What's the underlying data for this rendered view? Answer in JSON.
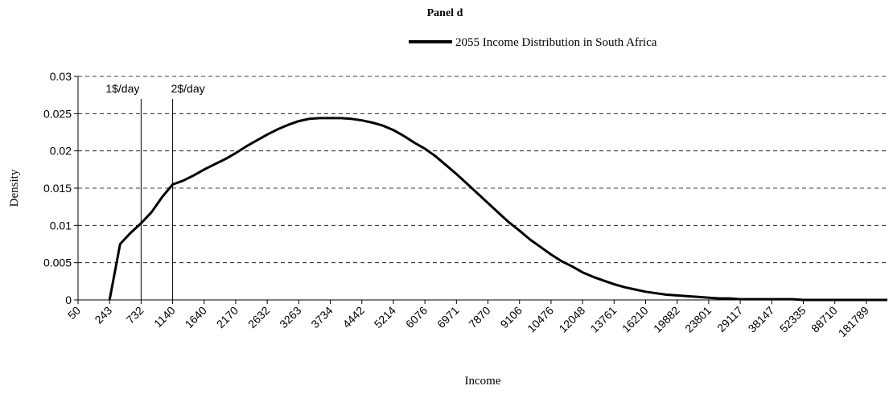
{
  "chart_data": {
    "type": "line",
    "title": "Panel d",
    "xlabel": "Income",
    "ylabel": "Density",
    "categories": [
      50,
      null,
      null,
      243,
      null,
      null,
      732,
      null,
      null,
      1140,
      null,
      null,
      1640,
      null,
      null,
      2170,
      null,
      null,
      2632,
      null,
      null,
      3263,
      null,
      null,
      3734,
      null,
      null,
      4442,
      null,
      null,
      5214,
      null,
      null,
      6076,
      null,
      null,
      6971,
      null,
      null,
      7870,
      null,
      null,
      9106,
      null,
      null,
      10476,
      null,
      null,
      12048,
      null,
      null,
      13761,
      null,
      null,
      16210,
      null,
      null,
      19882,
      null,
      null,
      23801,
      null,
      null,
      29117,
      null,
      null,
      38147,
      null,
      null,
      52335,
      null,
      null,
      88710,
      null,
      null,
      181789,
      null,
      null
    ],
    "series": [
      {
        "name": "2055 Income Distribution in South Africa",
        "color": "#000000",
        "values": [
          null,
          null,
          null,
          0,
          0.0075,
          0.009,
          0.0103,
          0.0118,
          0.0138,
          0.0155,
          0.016,
          0.0167,
          0.0175,
          0.0182,
          0.0189,
          0.0197,
          0.0206,
          0.0214,
          0.0222,
          0.0229,
          0.0235,
          0.024,
          0.0243,
          0.0244,
          0.0244,
          0.0244,
          0.0243,
          0.0241,
          0.0238,
          0.0234,
          0.0228,
          0.022,
          0.0211,
          0.0203,
          0.0193,
          0.0181,
          0.0169,
          0.0156,
          0.0143,
          0.013,
          0.0117,
          0.0104,
          0.0093,
          0.0081,
          0.0071,
          0.0061,
          0.0052,
          0.0045,
          0.0037,
          0.0031,
          0.0026,
          0.0021,
          0.0017,
          0.0014,
          0.0011,
          0.0009,
          0.0007,
          0.0006,
          0.0005,
          0.0004,
          0.0003,
          0.0002,
          0.0002,
          0.0001,
          0.0001,
          0.0001,
          0.0001,
          0.0001,
          0.0001,
          0,
          0,
          0,
          0,
          0,
          0,
          0,
          0,
          0
        ]
      }
    ],
    "annotations": [
      {
        "text": "1$/day",
        "x": 732
      },
      {
        "text": "2$/day",
        "x": 1140
      }
    ],
    "ylim": [
      0,
      0.03
    ],
    "yticks": [
      0,
      0.005,
      0.01,
      0.015,
      0.02,
      0.025,
      0.03
    ],
    "grid": true,
    "legend": "top"
  }
}
